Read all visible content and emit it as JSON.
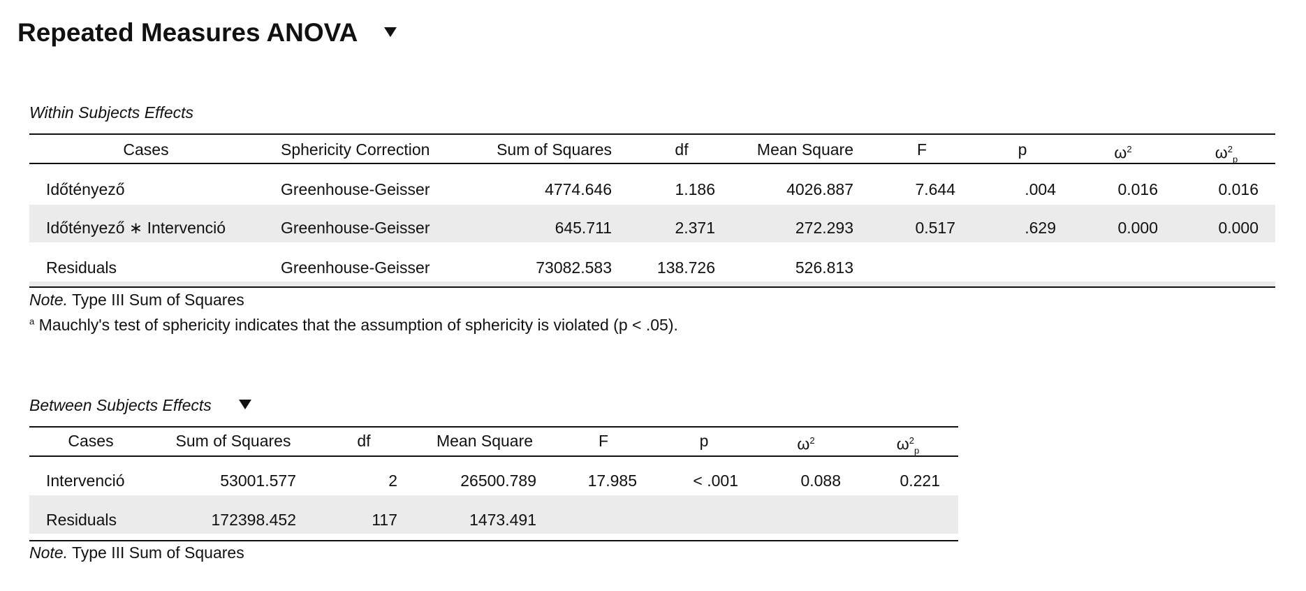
{
  "title": "Repeated Measures ANOVA",
  "within": {
    "caption": "Within Subjects Effects",
    "headers": {
      "cases": "Cases",
      "sphericity": "Sphericity Correction",
      "ss": "Sum of Squares",
      "df": "df",
      "ms": "Mean Square",
      "f": "F",
      "p": "p",
      "omega": "ω",
      "omega_sup": "2",
      "omega_p_sub": "p"
    },
    "rows": [
      {
        "case": "Időtényező",
        "sph": "Greenhouse-Geisser",
        "ss": "4774.646",
        "df": "1.186",
        "ms": "4026.887",
        "f": "7.644",
        "p": ".004",
        "w2": "0.016",
        "w2p": "0.016"
      },
      {
        "case": "Időtényező ∗ Intervenció",
        "sph": "Greenhouse-Geisser",
        "ss": "645.711",
        "df": "2.371",
        "ms": "272.293",
        "f": "0.517",
        "p": ".629",
        "w2": "0.000",
        "w2p": "0.000"
      },
      {
        "case": "Residuals",
        "sph": "Greenhouse-Geisser",
        "ss": "73082.583",
        "df": "138.726",
        "ms": "526.813"
      }
    ],
    "note_label": "Note.",
    "note_text": "Type III Sum of Squares",
    "footnote_mark": "a",
    "footnote": "Mauchly's test of sphericity indicates that the assumption of sphericity is violated (p < .05)."
  },
  "between": {
    "caption": "Between Subjects Effects",
    "headers": {
      "cases": "Cases",
      "ss": "Sum of Squares",
      "df": "df",
      "ms": "Mean Square",
      "f": "F",
      "p": "p",
      "omega": "ω",
      "omega_sup": "2",
      "omega_p_sub": "p"
    },
    "rows": [
      {
        "case": "Intervenció",
        "ss": "53001.577",
        "df": "2",
        "ms": "26500.789",
        "f": "17.985",
        "p": "< .001",
        "w2": "0.088",
        "w2p": "0.221"
      },
      {
        "case": "Residuals",
        "ss": "172398.452",
        "df": "117",
        "ms": "1473.491"
      }
    ],
    "note_label": "Note.",
    "note_text": "Type III Sum of Squares"
  }
}
